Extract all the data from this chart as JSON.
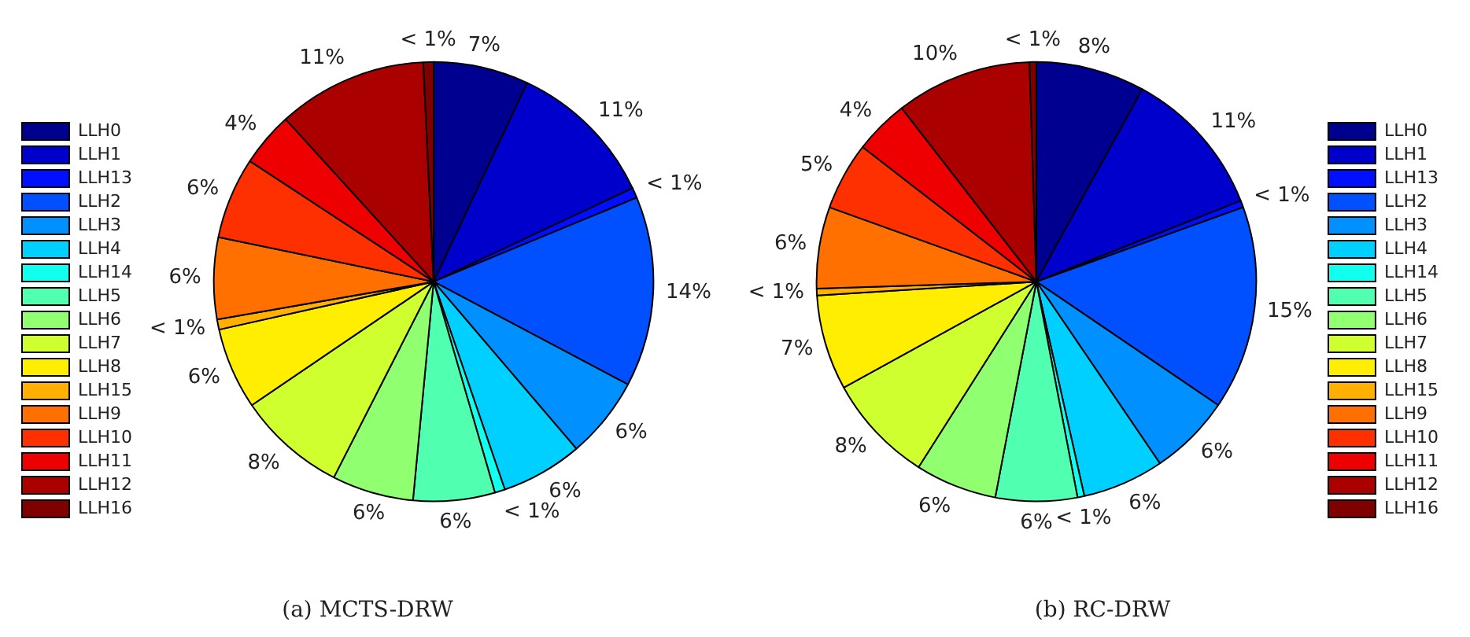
{
  "chart_data": [
    {
      "type": "pie",
      "title": "(a) MCTS-DRW",
      "legend": "left",
      "categories": [
        "LLH0",
        "LLH1",
        "LLH13",
        "LLH2",
        "LLH3",
        "LLH4",
        "LLH14",
        "LLH5",
        "LLH6",
        "LLH7",
        "LLH8",
        "LLH15",
        "LLH9",
        "LLH10",
        "LLH11",
        "LLH12",
        "LLH16"
      ],
      "values": [
        7,
        11,
        0.75,
        14,
        6,
        6,
        0.75,
        6,
        6,
        8,
        6,
        0.75,
        6,
        6,
        4,
        11,
        0.75
      ],
      "value_labels": [
        "7%",
        "11%",
        "< 1%",
        "14%",
        "6%",
        "6%",
        "< 1%",
        "6%",
        "6%",
        "8%",
        "6%",
        "< 1%",
        "6%",
        "6%",
        "4%",
        "11%",
        "< 1%"
      ],
      "colors": [
        "#000090",
        "#0000cc",
        "#0010ff",
        "#0050ff",
        "#0090ff",
        "#00d0ff",
        "#10ffef",
        "#50ffb0",
        "#90ff70",
        "#d0ff30",
        "#ffee00",
        "#ffb000",
        "#ff7000",
        "#ff3000",
        "#ee0000",
        "#aa0000",
        "#800000"
      ]
    },
    {
      "type": "pie",
      "title": "(b) RC-DRW",
      "legend": "right",
      "categories": [
        "LLH0",
        "LLH1",
        "LLH13",
        "LLH2",
        "LLH3",
        "LLH4",
        "LLH14",
        "LLH5",
        "LLH6",
        "LLH7",
        "LLH8",
        "LLH15",
        "LLH9",
        "LLH10",
        "LLH11",
        "LLH12",
        "LLH16"
      ],
      "values": [
        8,
        11,
        0.5,
        15,
        6,
        6,
        0.5,
        6,
        6,
        8,
        7,
        0.5,
        6,
        5,
        4,
        10,
        0.5
      ],
      "value_labels": [
        "8%",
        "11%",
        "< 1%",
        "15%",
        "6%",
        "6%",
        "< 1%",
        "6%",
        "6%",
        "8%",
        "7%",
        "< 1%",
        "6%",
        "5%",
        "4%",
        "10%",
        "< 1%"
      ],
      "colors": [
        "#000090",
        "#0000cc",
        "#0010ff",
        "#0050ff",
        "#0090ff",
        "#00d0ff",
        "#10ffef",
        "#50ffb0",
        "#90ff70",
        "#d0ff30",
        "#ffee00",
        "#ffb000",
        "#ff7000",
        "#ff3000",
        "#ee0000",
        "#aa0000",
        "#800000"
      ]
    }
  ]
}
